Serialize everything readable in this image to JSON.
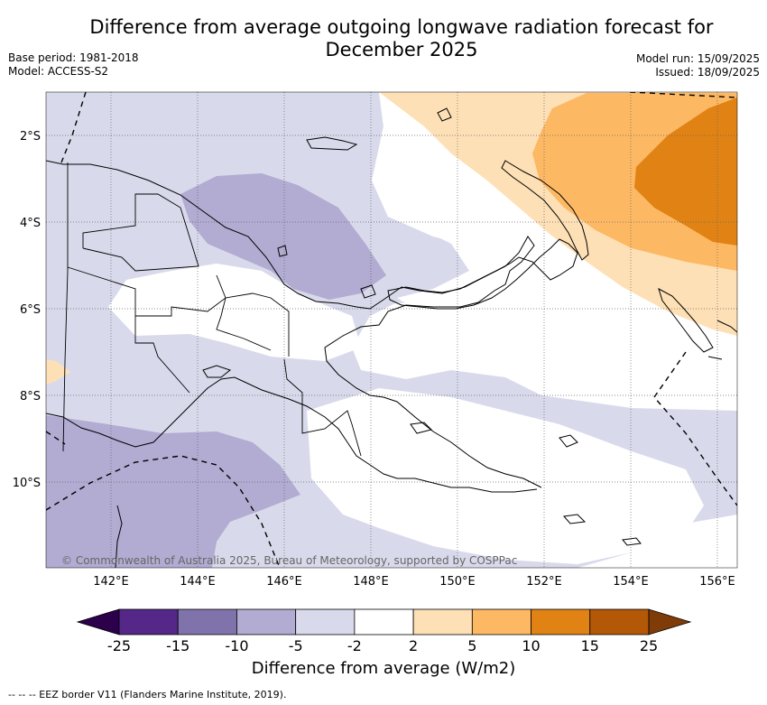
{
  "title_line1": "Difference from average outgoing longwave radiation forecast for",
  "title_line2": "December 2025",
  "base_period": "Base period: 1981-2018",
  "model": "Model: ACCESS-S2",
  "model_run": "Model run: 15/09/2025",
  "issued": "Issued: 18/09/2025",
  "copyright": "© Commonwealth of Australia 2025, Bureau of Meteorology, supported by COSPPac",
  "lat_labels": [
    "2°S",
    "4°S",
    "6°S",
    "8°S",
    "10°S"
  ],
  "lon_labels": [
    "142°E",
    "144°E",
    "146°E",
    "148°E",
    "150°E",
    "152°E",
    "154°E",
    "156°E"
  ],
  "colorbar": {
    "ticks": [
      "-25",
      "-15",
      "-10",
      "-5",
      "-2",
      "2",
      "5",
      "10",
      "15",
      "25"
    ],
    "colors": [
      "#2d004b",
      "#542788",
      "#8073ac",
      "#b2abd2",
      "#d8daeb",
      "#ffffff",
      "#fee0b6",
      "#fdb863",
      "#e08214",
      "#b35806",
      "#7f3b08"
    ],
    "label": "Difference from average (W/m2)"
  },
  "legend_note": "-- -- -- EEZ border V11 (Flanders Marine Institute, 2019)."
}
